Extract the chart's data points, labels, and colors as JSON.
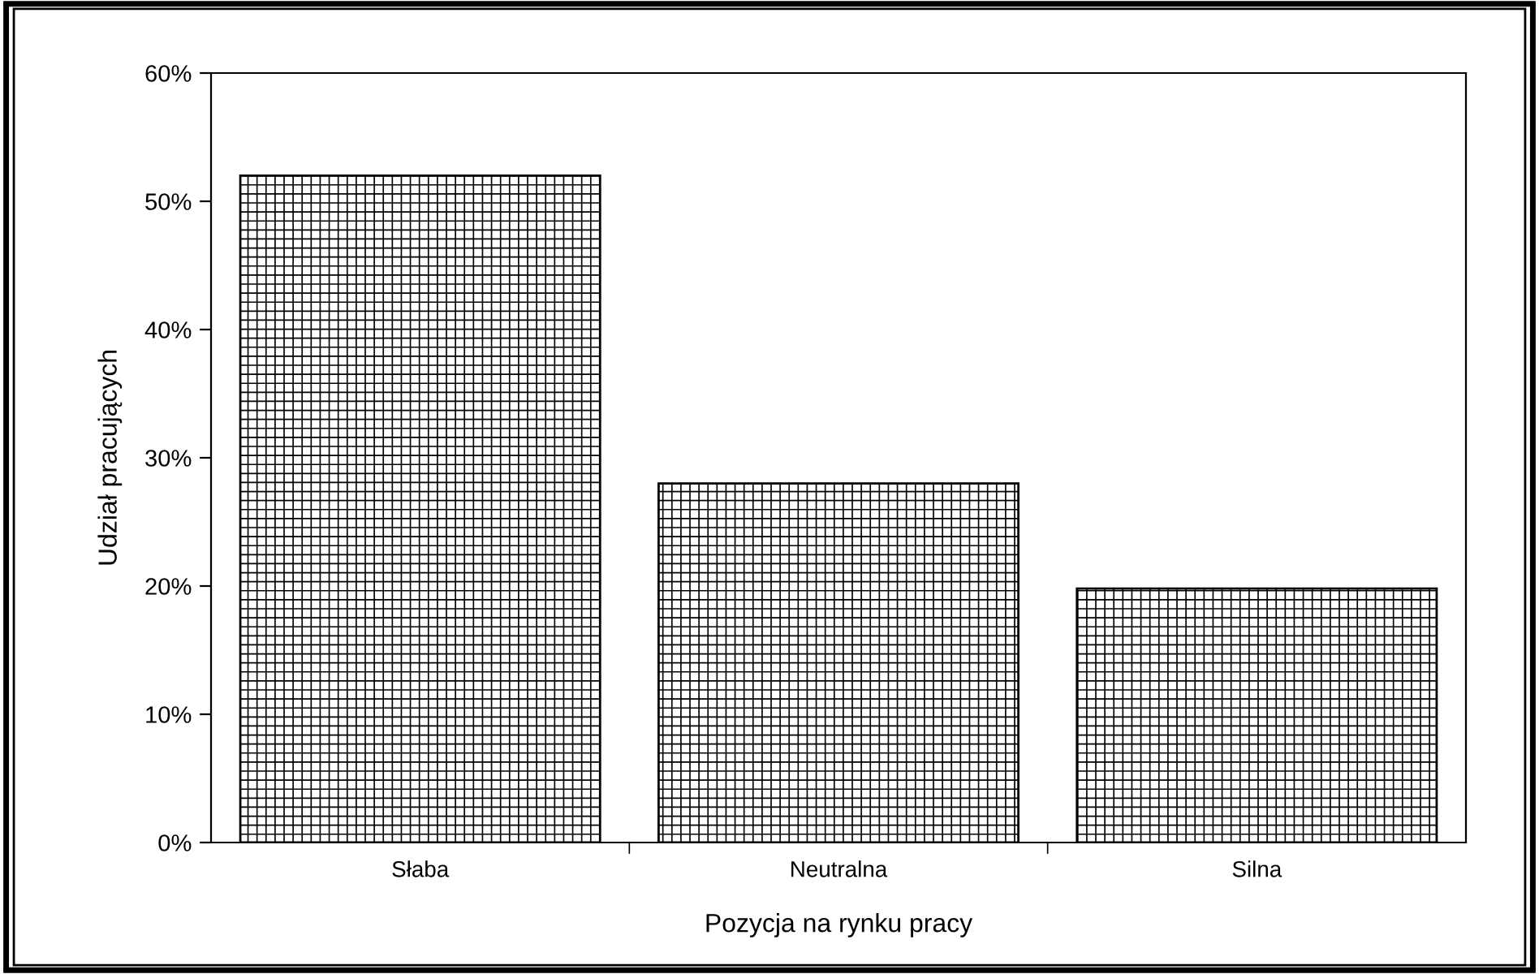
{
  "chart_data": {
    "type": "bar",
    "xlabel": "Pozycja na rynku pracy",
    "ylabel": "Udział pracujących",
    "categories": [
      "Słaba",
      "Neutralna",
      "Silna"
    ],
    "values": [
      52,
      28,
      19.8
    ],
    "color": "#000000",
    "ylim": [
      0,
      60
    ],
    "yticks": [
      {
        "value": 0,
        "label": "0%"
      },
      {
        "value": 10,
        "label": "10%"
      },
      {
        "value": 20,
        "label": "20%"
      },
      {
        "value": 30,
        "label": "30%"
      },
      {
        "value": 40,
        "label": "40%"
      },
      {
        "value": 50,
        "label": "50%"
      },
      {
        "value": 60,
        "label": "60%"
      }
    ],
    "grid": false,
    "legend": false
  }
}
